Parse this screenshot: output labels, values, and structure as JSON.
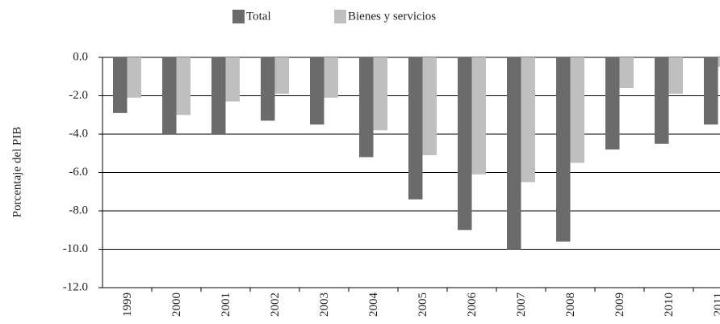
{
  "chart_data": {
    "type": "bar",
    "y_axis_label": "Porcentaje del PIB",
    "categories": [
      "1999",
      "2000",
      "2001",
      "2002",
      "2003",
      "2004",
      "2005",
      "2006",
      "2007",
      "2008",
      "2009",
      "2010",
      "2011"
    ],
    "series": [
      {
        "name": "Total",
        "color": "#6b6b6b",
        "values": [
          -2.9,
          -4.0,
          -4.0,
          -3.3,
          -3.5,
          -5.2,
          -7.4,
          -9.0,
          -10.0,
          -9.6,
          -4.8,
          -4.5,
          -3.5
        ]
      },
      {
        "name": "Bienes y servicios",
        "color": "#bfbfbf",
        "values": [
          -2.1,
          -3.0,
          -2.3,
          -1.9,
          -2.1,
          -3.8,
          -5.1,
          -6.1,
          -6.5,
          -5.5,
          -1.6,
          -1.9,
          -0.5
        ]
      }
    ],
    "ylim": [
      -12,
      0
    ],
    "yticks": [
      {
        "value": 0,
        "label": "0.0"
      },
      {
        "value": -2,
        "label": "-2.0"
      },
      {
        "value": -4,
        "label": "-4.0"
      },
      {
        "value": -6,
        "label": "-6.0"
      },
      {
        "value": -8,
        "label": "-8.0"
      },
      {
        "value": -10,
        "label": "-10.0"
      },
      {
        "value": -12,
        "label": "-12.0"
      }
    ],
    "grid": true,
    "legend": "top"
  }
}
